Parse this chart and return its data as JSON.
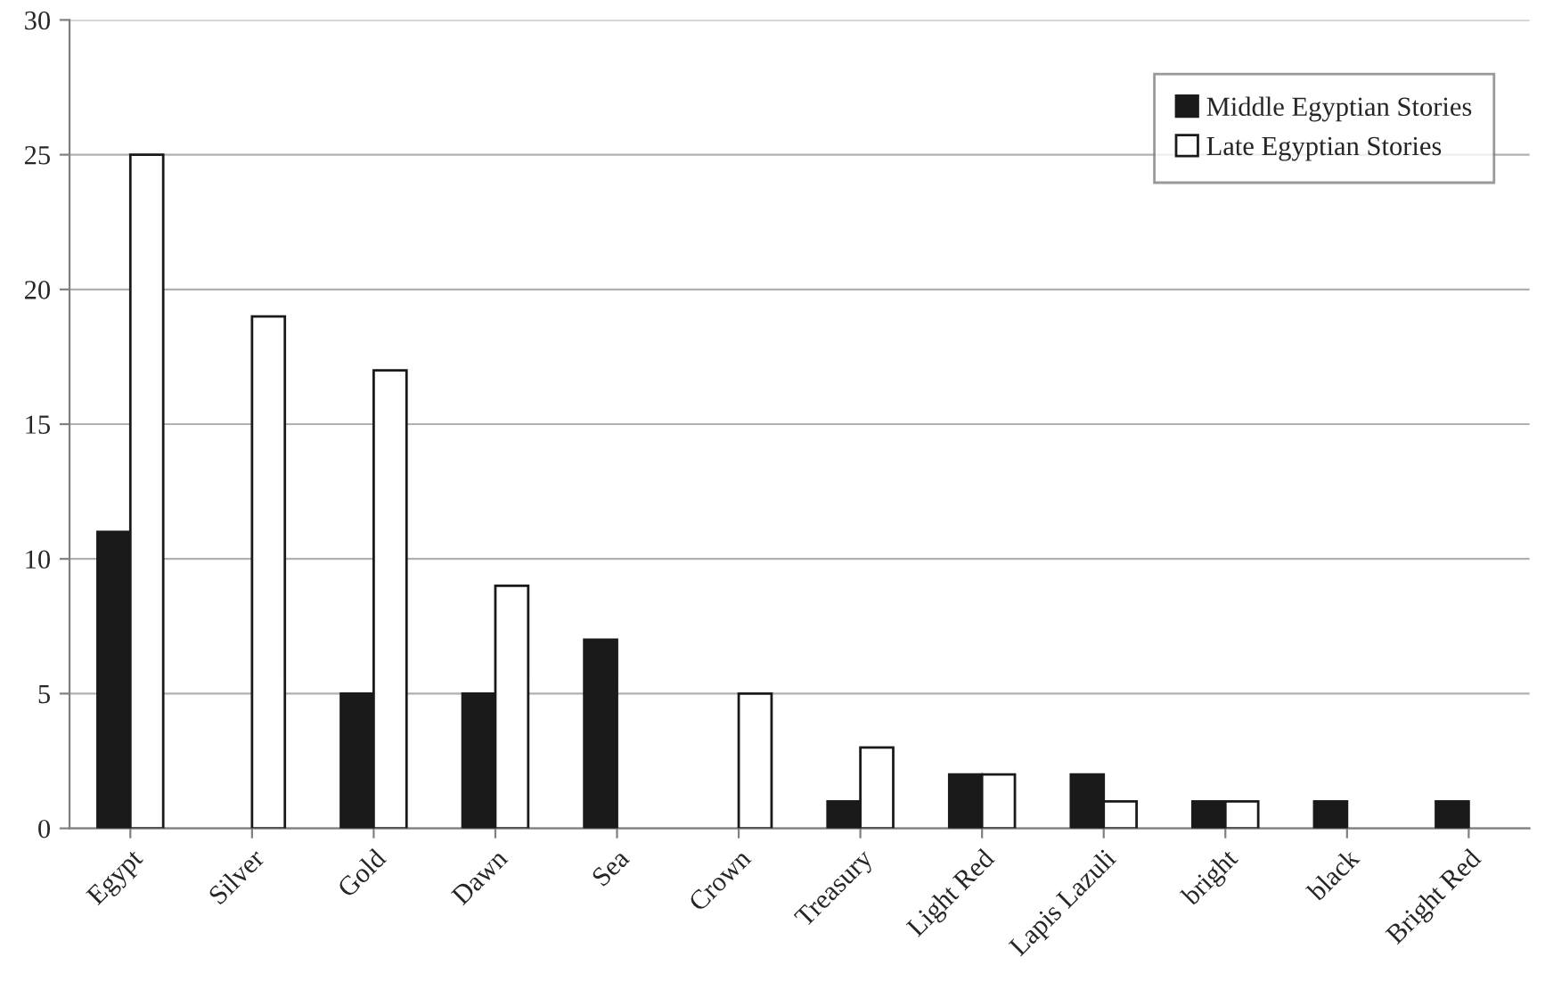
{
  "chart_data": {
    "type": "bar",
    "categories": [
      "Egypt",
      "Silver",
      "Gold",
      "Dawn",
      "Sea",
      "Crown",
      "Treasury",
      "Light Red",
      "Lapis Lazuli",
      "bright",
      "black",
      "Bright Red"
    ],
    "series": [
      {
        "name": "Middle Egyptian Stories",
        "color": "#1a1a1a",
        "values": [
          11,
          null,
          5,
          5,
          7,
          null,
          1,
          2,
          2,
          1,
          1,
          1
        ]
      },
      {
        "name": "Late Egyptian Stories",
        "color": "#ffffff",
        "values": [
          25,
          19,
          17,
          9,
          null,
          5,
          3,
          2,
          1,
          1,
          null,
          null
        ]
      }
    ],
    "ylim": [
      0,
      30
    ],
    "yticks": [
      0,
      5,
      10,
      15,
      20,
      25,
      30
    ],
    "grid": "y",
    "legend": "top right"
  }
}
